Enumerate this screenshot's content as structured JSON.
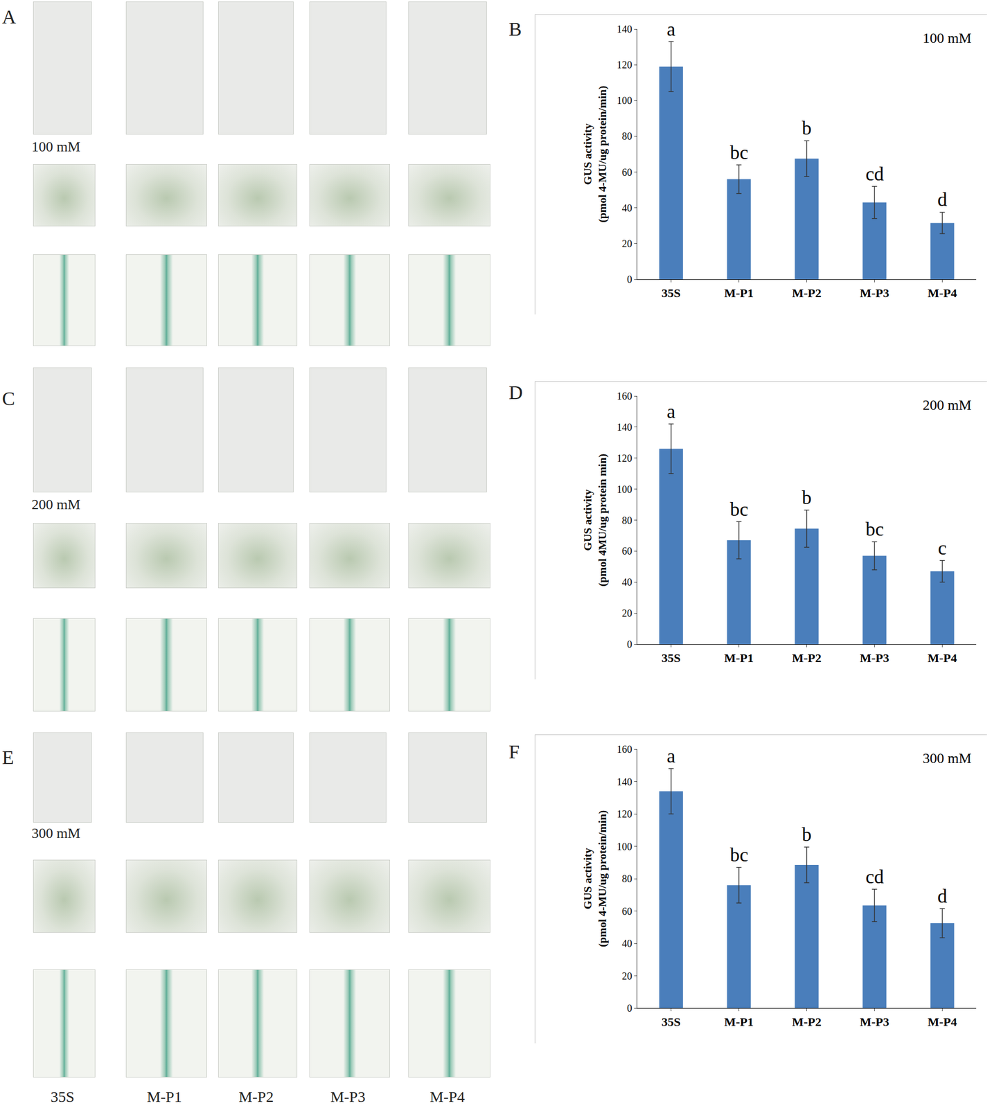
{
  "photo_panels": [
    {
      "label": "A",
      "concentration": "100 mM"
    },
    {
      "label": "C",
      "concentration": "200 mM"
    },
    {
      "label": "E",
      "concentration": "300 mM"
    }
  ],
  "photo_columns": [
    "35S",
    "M-P1",
    "M-P2",
    "M-P3",
    "M-P4"
  ],
  "chart_data": [
    {
      "type": "bar",
      "panel": "B",
      "annotation": "100 mM",
      "categories": [
        "35S",
        "M-P1",
        "M-P2",
        "M-P3",
        "M-P4"
      ],
      "values": [
        119,
        56,
        67.5,
        43,
        31.5
      ],
      "errors": [
        14,
        8,
        10,
        9,
        6
      ],
      "letters": [
        "a",
        "bc",
        "b",
        "cd",
        "d"
      ],
      "color": "#4a7ebb",
      "ylabel": [
        "GUS activity",
        "(pmol 4-MU/ug protein/min)"
      ],
      "ylim": [
        0,
        140
      ],
      "yticks": [
        0,
        20,
        40,
        60,
        80,
        100,
        120,
        140
      ],
      "grid": false
    },
    {
      "type": "bar",
      "panel": "D",
      "annotation": "200 mM",
      "categories": [
        "35S",
        "M-P1",
        "M-P2",
        "M-P3",
        "M-P4"
      ],
      "values": [
        126,
        67,
        74.5,
        57,
        47
      ],
      "errors": [
        16,
        12,
        12,
        9,
        7
      ],
      "letters": [
        "a",
        "bc",
        "b",
        "bc",
        "c"
      ],
      "color": "#4a7ebb",
      "ylabel": [
        "GUS activity",
        "(pmol 4MU/ug protein min)"
      ],
      "ylim": [
        0,
        160
      ],
      "yticks": [
        0,
        20,
        40,
        60,
        80,
        100,
        120,
        140,
        160
      ],
      "grid": false
    },
    {
      "type": "bar",
      "panel": "F",
      "annotation": "300 mM",
      "categories": [
        "35S",
        "M-P1",
        "M-P2",
        "M-P3",
        "M-P4"
      ],
      "values": [
        134,
        76,
        88.5,
        63.5,
        52.5
      ],
      "errors": [
        14,
        11,
        11,
        10,
        9
      ],
      "letters": [
        "a",
        "bc",
        "b",
        "cd",
        "d"
      ],
      "color": "#4a7ebb",
      "ylabel": [
        "GUS activity",
        "(pmol 4-MU/ug protein/min)"
      ],
      "ylim": [
        0,
        160
      ],
      "yticks": [
        0,
        20,
        40,
        60,
        80,
        100,
        120,
        140,
        160
      ],
      "grid": false
    }
  ]
}
